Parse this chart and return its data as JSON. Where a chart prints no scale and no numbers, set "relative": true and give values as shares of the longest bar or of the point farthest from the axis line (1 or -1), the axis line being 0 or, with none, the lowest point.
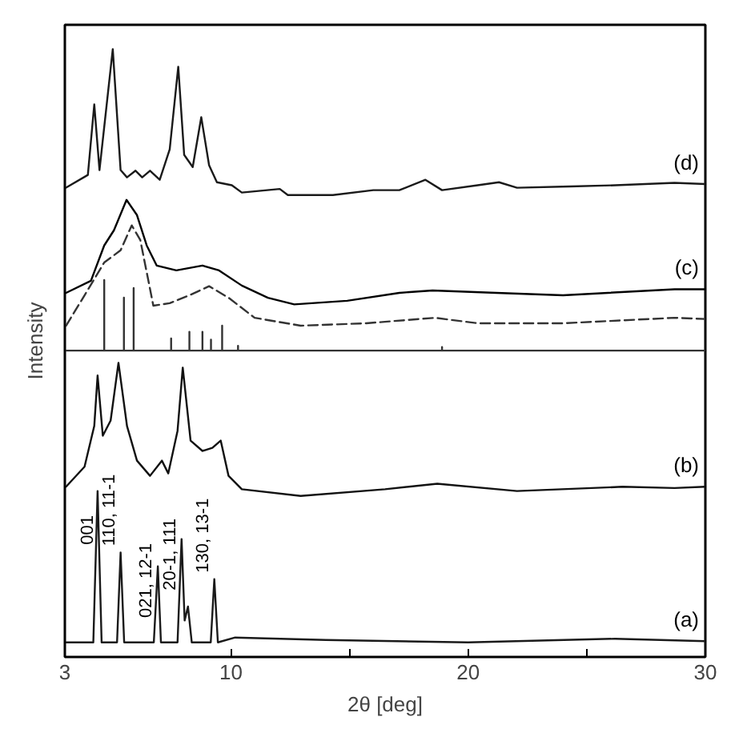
{
  "chart_data": {
    "type": "line",
    "xlabel": "2θ [deg]",
    "ylabel": "Intensity",
    "relative": true,
    "xlim": [
      3,
      30
    ],
    "xticks": [
      3,
      10,
      {
        "value": 15,
        "label": null
      },
      20,
      {
        "value": 25,
        "label": null
      },
      30
    ],
    "grid": false,
    "series": [
      {
        "name": "(a)",
        "color": "#1a1a1a",
        "x": [
          3.0,
          4.2,
          4.38,
          4.55,
          5.2,
          5.35,
          5.5,
          6.75,
          6.92,
          7.05,
          7.75,
          7.92,
          8.05,
          8.19,
          8.35,
          9.15,
          9.3,
          9.45,
          10.18,
          14,
          20,
          26.2,
          30
        ],
        "values": [
          0.024,
          0.024,
          0.273,
          0.024,
          0.024,
          0.172,
          0.024,
          0.024,
          0.149,
          0.024,
          0.024,
          0.194,
          0.06,
          0.083,
          0.024,
          0.024,
          0.128,
          0.024,
          0.032,
          0.028,
          0.024,
          0.03,
          0.026
        ]
      },
      {
        "name": "(b)",
        "color": "#111111",
        "x": [
          3.05,
          3.83,
          4.24,
          4.38,
          4.6,
          4.93,
          5.26,
          5.62,
          6.04,
          6.59,
          7.09,
          7.36,
          7.75,
          7.97,
          8.3,
          8.8,
          9.22,
          9.57,
          9.9,
          10.46,
          12.94,
          16.5,
          18.7,
          22.06,
          26.5,
          28.7,
          30
        ],
        "values": [
          0.28,
          0.313,
          0.38,
          0.463,
          0.364,
          0.389,
          0.484,
          0.38,
          0.323,
          0.298,
          0.323,
          0.302,
          0.372,
          0.476,
          0.356,
          0.339,
          0.344,
          0.356,
          0.298,
          0.276,
          0.265,
          0.276,
          0.285,
          0.273,
          0.28,
          0.278,
          0.28
        ]
      },
      {
        "color": "#333333",
        "x": [
          3.0,
          4.66,
          4.66,
          4.66,
          5.49,
          5.49,
          5.49,
          5.9,
          5.9,
          5.9,
          7.48,
          7.48,
          7.48,
          8.25,
          8.25,
          8.25,
          8.8,
          8.8,
          8.8,
          9.16,
          9.16,
          9.16,
          9.63,
          9.63,
          9.63,
          10.3,
          10.3,
          10.3,
          18.9,
          18.9,
          18.9,
          30
        ],
        "values": [
          0.504,
          0.504,
          0.62,
          0.504,
          0.504,
          0.591,
          0.504,
          0.504,
          0.607,
          0.504,
          0.504,
          0.524,
          0.504,
          0.504,
          0.535,
          0.504,
          0.504,
          0.535,
          0.504,
          0.504,
          0.522,
          0.504,
          0.504,
          0.545,
          0.504,
          0.504,
          0.512,
          0.504,
          0.504,
          0.51,
          0.504,
          0.504
        ]
      },
      {
        "color": "#333333",
        "line_style": "dashed",
        "x": [
          3.05,
          3.83,
          4.66,
          5.35,
          5.82,
          6.18,
          6.73,
          7.42,
          8.25,
          9.08,
          9.9,
          11.0,
          12.94,
          15.7,
          18.6,
          20.4,
          24.0,
          28.7,
          30
        ],
        "values": [
          0.545,
          0.595,
          0.649,
          0.669,
          0.71,
          0.686,
          0.578,
          0.582,
          0.595,
          0.61,
          0.591,
          0.558,
          0.545,
          0.549,
          0.558,
          0.549,
          0.549,
          0.558,
          0.556
        ]
      },
      {
        "name": "(c)",
        "color": "#000000",
        "x": [
          3.05,
          4.1,
          4.66,
          5.07,
          5.6,
          6.04,
          6.45,
          6.87,
          7.7,
          8.8,
          9.5,
          10.46,
          11.56,
          12.67,
          14.9,
          17.1,
          18.5,
          21.2,
          24.0,
          28.7,
          30
        ],
        "values": [
          0.599,
          0.619,
          0.677,
          0.702,
          0.752,
          0.727,
          0.677,
          0.644,
          0.636,
          0.644,
          0.636,
          0.611,
          0.591,
          0.58,
          0.586,
          0.599,
          0.603,
          0.599,
          0.595,
          0.605,
          0.605
        ]
      },
      {
        "name": "(d)",
        "color": "#1a1a1a",
        "x": [
          3.05,
          3.97,
          4.24,
          4.46,
          5.02,
          5.35,
          5.62,
          5.98,
          6.26,
          6.59,
          7.0,
          7.42,
          7.78,
          8.03,
          8.39,
          8.75,
          9.08,
          9.41,
          10.04,
          10.46,
          12.06,
          12.4,
          14.3,
          16.0,
          17.1,
          18.2,
          18.9,
          20.4,
          21.3,
          22.06,
          24.3,
          26.2,
          28.7,
          30
        ],
        "values": [
          0.772,
          0.793,
          0.909,
          0.801,
          1.0,
          0.801,
          0.789,
          0.8,
          0.789,
          0.8,
          0.785,
          0.835,
          0.971,
          0.826,
          0.806,
          0.888,
          0.809,
          0.781,
          0.776,
          0.764,
          0.77,
          0.76,
          0.76,
          0.768,
          0.768,
          0.785,
          0.768,
          0.776,
          0.781,
          0.772,
          0.774,
          0.776,
          0.78,
          0.778
        ]
      }
    ],
    "annotations": [
      {
        "text": "001",
        "x": 4.38,
        "y": 0.174
      },
      {
        "text": "110, 11-1",
        "x": 5.35,
        "y": 0.172
      },
      {
        "text": "021, 12-1",
        "x": 6.92,
        "y": 0.054
      },
      {
        "text": "20-1, 111",
        "x": 7.92,
        "y": 0.099
      },
      {
        "text": "130, 13-1",
        "x": 9.3,
        "y": 0.128
      }
    ]
  }
}
